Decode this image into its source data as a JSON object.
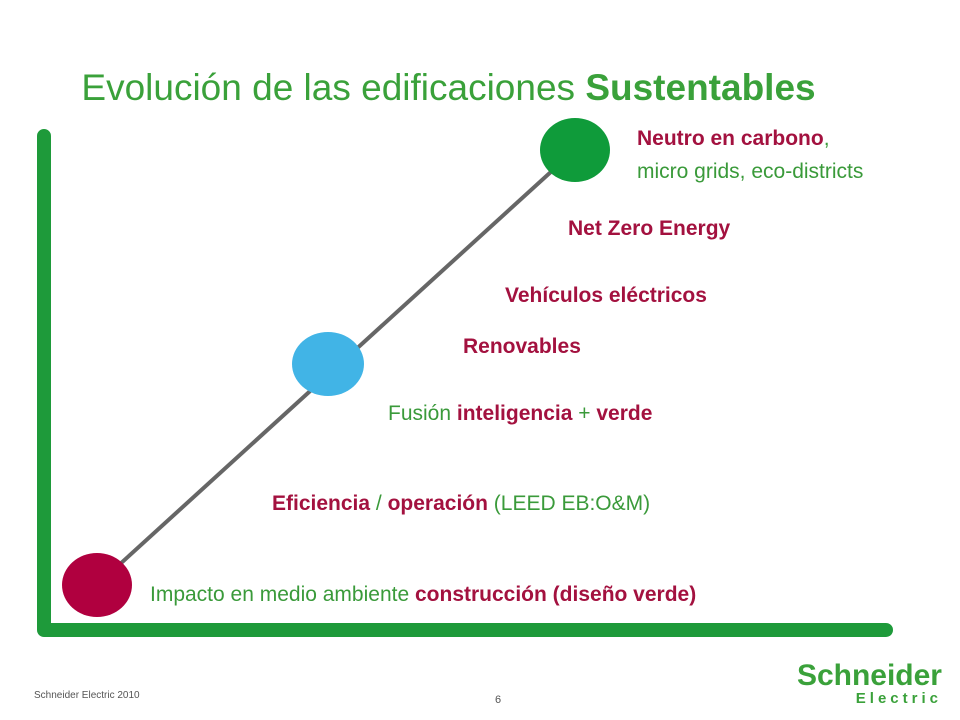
{
  "header": {
    "title": [
      "Evolución de las edificaciones ",
      "Sustentables"
    ]
  },
  "stages": {
    "carbon": {
      "line1": [
        "Neutro en carbono",
        ","
      ],
      "line2": "micro grids, eco-districts"
    },
    "net_zero": "Net Zero Energy",
    "vehicles": "Vehículos eléctricos",
    "renewables": "Renovables",
    "fusion": [
      "Fusión ",
      "inteligencia",
      " + ",
      "verde"
    ],
    "efficiency": [
      "Eficiencia",
      " / ",
      "operación",
      " (LEED EB:O&M)"
    ],
    "impact": [
      "Impacto en medio ambiente ",
      "construcción (diseño verde)"
    ]
  },
  "footer": {
    "company": "Schneider Electric 2010",
    "page": "6",
    "logo": [
      "Schneider",
      "Electric"
    ]
  }
}
